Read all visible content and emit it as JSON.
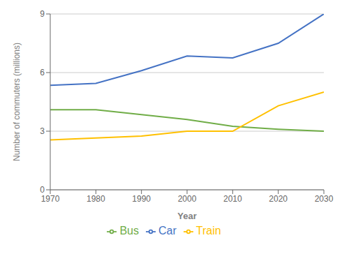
{
  "chart_data": {
    "type": "line",
    "x": [
      1970,
      1980,
      1990,
      2000,
      2010,
      2020,
      2030
    ],
    "series": [
      {
        "name": "Car",
        "color": "#4472c4",
        "values": [
          5.35,
          5.45,
          6.1,
          6.85,
          6.75,
          7.5,
          9.0
        ]
      },
      {
        "name": "Bus",
        "color": "#70ad47",
        "values": [
          4.1,
          4.1,
          3.85,
          3.6,
          3.25,
          3.1,
          3.0
        ]
      },
      {
        "name": "Train",
        "color": "#ffc000",
        "values": [
          2.55,
          2.65,
          2.75,
          3.0,
          3.0,
          4.3,
          5.0
        ]
      }
    ],
    "xlabel": "Year",
    "ylabel": "Number of commuters (millions)",
    "xlim": [
      1970,
      2030
    ],
    "ylim": [
      0,
      9
    ],
    "xticks": [
      1970,
      1980,
      1990,
      2000,
      2010,
      2020,
      2030
    ],
    "yticks": [
      0,
      3,
      6,
      9
    ],
    "grid": true,
    "legend": "bottom"
  }
}
